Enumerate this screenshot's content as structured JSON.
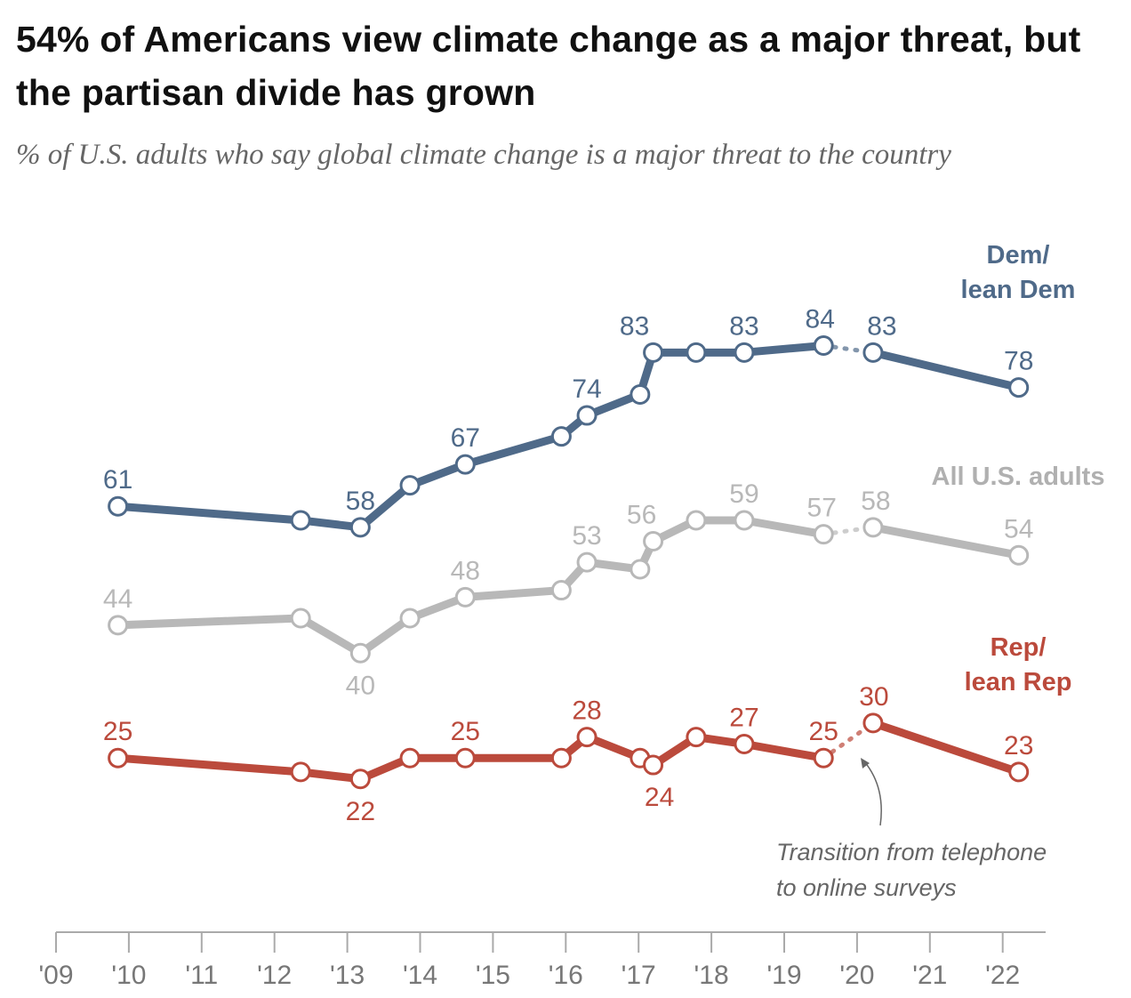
{
  "title": "54% of Americans view climate change as a major threat, but the partisan divide has grown",
  "subtitle": "% of U.S. adults who say global climate change is a major threat to the country",
  "chart_data": {
    "type": "line",
    "x": [
      2009.85,
      2012.36,
      2013.18,
      2013.86,
      2014.62,
      2015.94,
      2016.29,
      2017.02,
      2017.2,
      2017.79,
      2018.45,
      2019.54,
      2020.22,
      2022.22
    ],
    "xlim": [
      2009,
      2022.6
    ],
    "ylim": [
      0,
      100
    ],
    "xticks": [
      "'09",
      "'10",
      "'11",
      "'12",
      "'13",
      "'14",
      "'15",
      "'16",
      "'17",
      "'18",
      "'19",
      "'20",
      "'21",
      "'22"
    ],
    "grid": false,
    "series": [
      {
        "name": "Dem/ lean Dem",
        "name_lines": [
          "Dem/",
          "lean Dem"
        ],
        "color": "#4f6a89",
        "values": [
          61,
          59,
          58,
          64,
          67,
          71,
          74,
          77,
          83,
          83,
          83,
          84,
          83,
          78
        ],
        "labels": [
          "61",
          null,
          "58",
          null,
          "67",
          null,
          "74",
          null,
          "83",
          null,
          "83",
          "84",
          "83",
          "78"
        ]
      },
      {
        "name": "All U.S. adults",
        "name_lines": [
          "All U.S. adults"
        ],
        "color": "#b8b8b8",
        "values": [
          44,
          45,
          40,
          45,
          48,
          49,
          53,
          52,
          56,
          59,
          59,
          57,
          58,
          54
        ],
        "labels": [
          "44",
          null,
          "40",
          null,
          "48",
          null,
          "53",
          null,
          "56",
          null,
          "59",
          "57",
          "58",
          "54"
        ]
      },
      {
        "name": "Rep/ lean Rep",
        "name_lines": [
          "Rep/",
          "lean Rep"
        ],
        "color": "#bb4a3c",
        "values": [
          25,
          23,
          22,
          25,
          25,
          25,
          28,
          25,
          24,
          28,
          27,
          25,
          30,
          23
        ],
        "labels": [
          "25",
          null,
          "22",
          null,
          "25",
          null,
          "28",
          null,
          "24",
          null,
          "27",
          "25",
          "30",
          "23"
        ]
      }
    ],
    "dotted_segment_between": [
      2019.54,
      2020.22
    ],
    "annotation": [
      "Transition from telephone",
      "to online surveys"
    ]
  }
}
